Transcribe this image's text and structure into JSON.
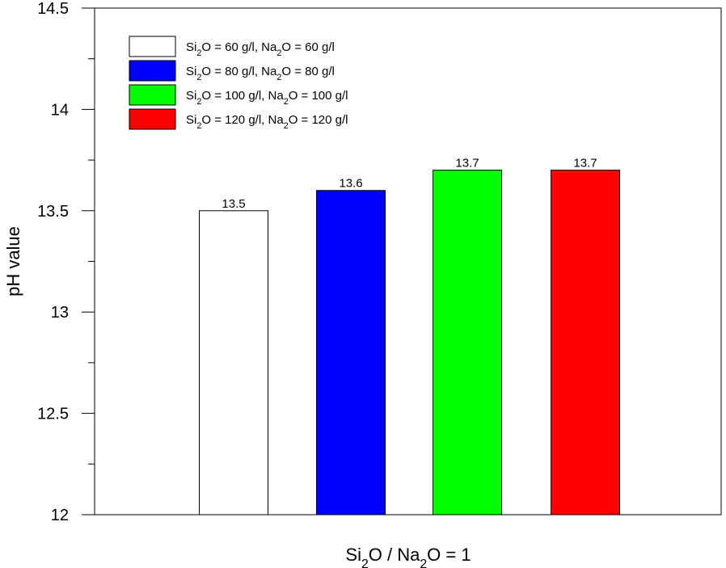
{
  "chart_data": {
    "type": "bar",
    "xlabel": "SiO2 / Na2O = 1",
    "ylabel": "pH value",
    "ylim": [
      12,
      14.5
    ],
    "yticks": [
      "12",
      "12.5",
      "13",
      "13.5",
      "14",
      "14.5"
    ],
    "yticks_values": [
      12,
      12.5,
      13,
      13.5,
      14,
      14.5
    ],
    "ytick_minor_step": 0.25,
    "grid": false,
    "legend_position": "top-left",
    "series": [
      {
        "name": "SiO2 =   60 g/l, Na2O =   60 g/l",
        "value": 13.5,
        "label": "13.5",
        "color": "#ffffff"
      },
      {
        "name": "SiO2 =   80 g/l, Na2O =   80 g/l",
        "value": 13.6,
        "label": "13.6",
        "color": "#0000ff"
      },
      {
        "name": "SiO2 = 100 g/l, Na2O = 100 g/l",
        "value": 13.7,
        "label": "13.7",
        "color": "#00ff00"
      },
      {
        "name": "SiO2 = 120 g/l, Na2O = 120 g/l",
        "value": 13.7,
        "label": "13.7",
        "color": "#ff0000"
      }
    ]
  }
}
